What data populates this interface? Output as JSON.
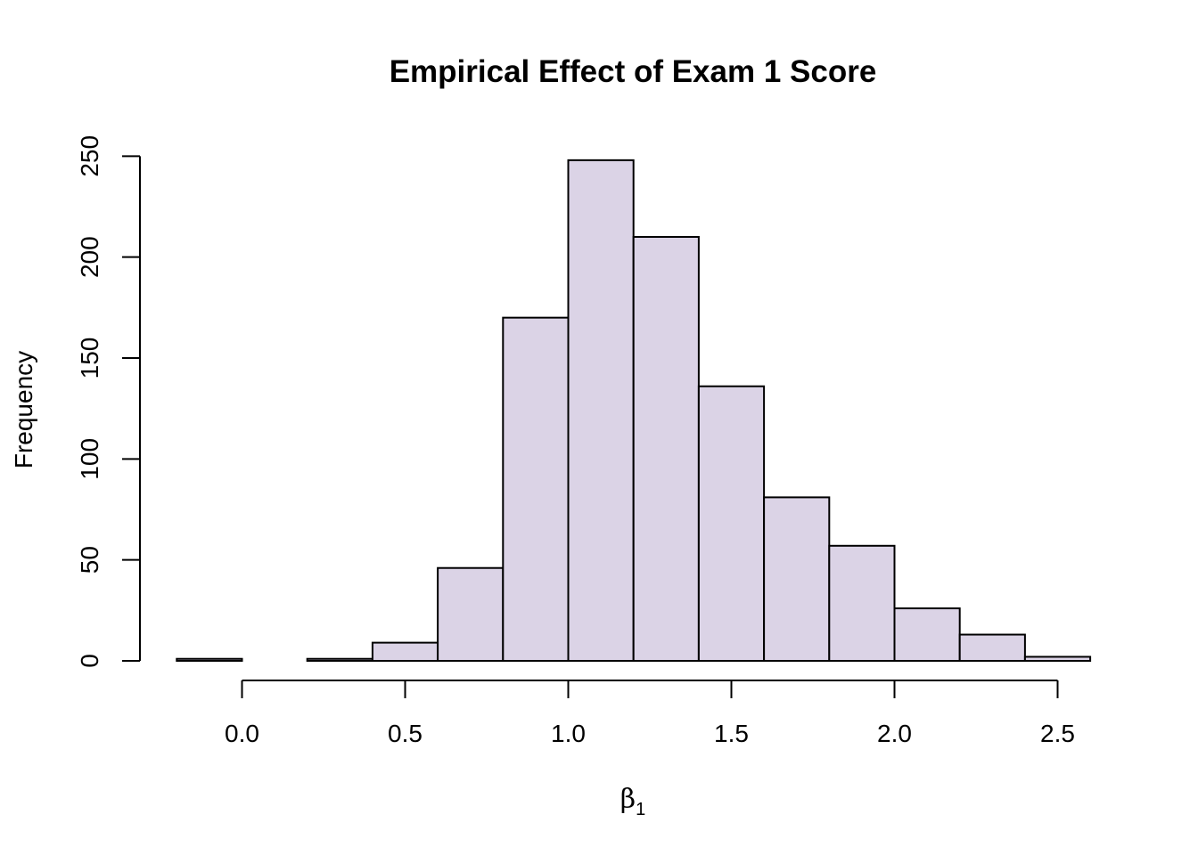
{
  "chart_data": {
    "type": "bar",
    "title": "Empirical Effect of Exam 1 Score",
    "xlabel": "β",
    "xlabel_subscript": "1",
    "ylabel": "Frequency",
    "bins": [
      {
        "x0": -0.2,
        "x1": 0.0,
        "count": 1
      },
      {
        "x0": 0.0,
        "x1": 0.2,
        "count": 0
      },
      {
        "x0": 0.2,
        "x1": 0.4,
        "count": 1
      },
      {
        "x0": 0.4,
        "x1": 0.6,
        "count": 9
      },
      {
        "x0": 0.6,
        "x1": 0.8,
        "count": 46
      },
      {
        "x0": 0.8,
        "x1": 1.0,
        "count": 170
      },
      {
        "x0": 1.0,
        "x1": 1.2,
        "count": 248
      },
      {
        "x0": 1.2,
        "x1": 1.4,
        "count": 210
      },
      {
        "x0": 1.4,
        "x1": 1.6,
        "count": 136
      },
      {
        "x0": 1.6,
        "x1": 1.8,
        "count": 81
      },
      {
        "x0": 1.8,
        "x1": 2.0,
        "count": 57
      },
      {
        "x0": 2.0,
        "x1": 2.2,
        "count": 26
      },
      {
        "x0": 2.2,
        "x1": 2.4,
        "count": 13
      },
      {
        "x0": 2.4,
        "x1": 2.6,
        "count": 2
      }
    ],
    "xticks": [
      {
        "value": 0.0,
        "label": "0.0"
      },
      {
        "value": 0.5,
        "label": "0.5"
      },
      {
        "value": 1.0,
        "label": "1.0"
      },
      {
        "value": 1.5,
        "label": "1.5"
      },
      {
        "value": 2.0,
        "label": "2.0"
      },
      {
        "value": 2.5,
        "label": "2.5"
      }
    ],
    "yticks": [
      {
        "value": 0,
        "label": "0"
      },
      {
        "value": 50,
        "label": "50"
      },
      {
        "value": 100,
        "label": "100"
      },
      {
        "value": 150,
        "label": "150"
      },
      {
        "value": 200,
        "label": "200"
      },
      {
        "value": 250,
        "label": "250"
      }
    ],
    "xlim": [
      -0.2,
      2.6
    ],
    "ylim": [
      0,
      250
    ],
    "grid": false,
    "bar_color": "#dbd3e6",
    "edge_color": "#000000"
  }
}
